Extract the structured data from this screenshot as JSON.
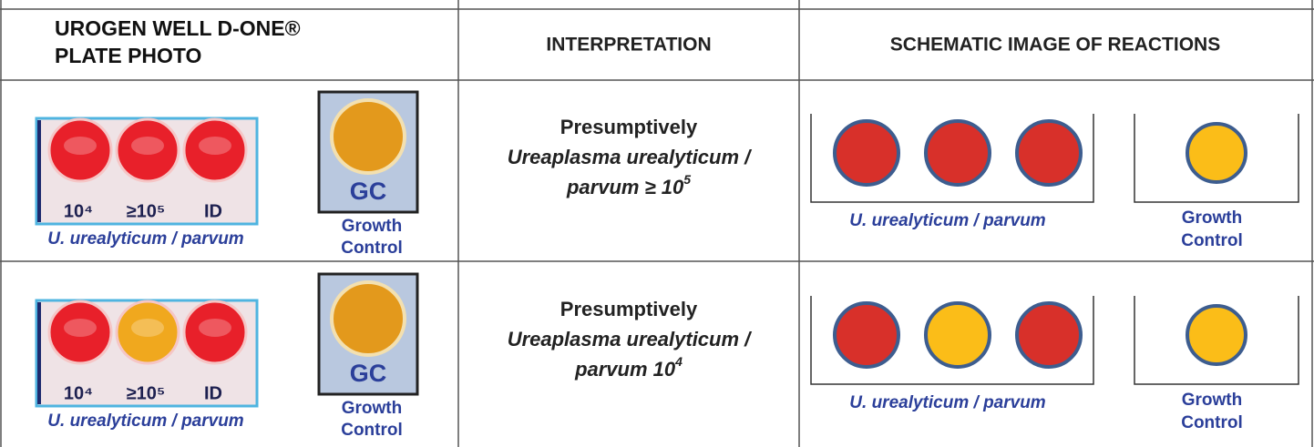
{
  "header": {
    "plate_photo_lines": [
      "UROGEN WELL D-ONE®",
      "PLATE PHOTO"
    ],
    "interpretation": "INTERPRETATION",
    "schematic": "SCHEMATIC IMAGE OF REACTIONS"
  },
  "rows": [
    {
      "photo": {
        "well_labels": [
          "10⁴",
          "≥10⁵",
          "ID"
        ],
        "well_colors": [
          "#e8202a",
          "#e8202a",
          "#e8202a"
        ],
        "control_label": "GC",
        "control_color": "#e3991c",
        "caption": "U. urealyticum / parvum",
        "control_caption": [
          "Growth",
          "Control"
        ]
      },
      "interpretation": {
        "lines": [
          "Presumptively",
          "Ureaplasma urealyticum /"
        ],
        "last_line": "parvum ≥ 10",
        "exponent": "5"
      },
      "schematic": {
        "well_colors": [
          "#d8302a",
          "#d8302a",
          "#d8302a"
        ],
        "control_color": "#fbbd18",
        "caption": "U. urealyticum / parvum",
        "control_caption": [
          "Growth",
          "Control"
        ]
      }
    },
    {
      "photo": {
        "well_labels": [
          "10⁴",
          "≥10⁵",
          "ID"
        ],
        "well_colors": [
          "#e8202a",
          "#f0a81e",
          "#e8202a"
        ],
        "control_label": "GC",
        "control_color": "#e3991c",
        "caption": "U. urealyticum / parvum",
        "control_caption": [
          "Growth",
          "Control"
        ]
      },
      "interpretation": {
        "lines": [
          "Presumptively",
          "Ureaplasma urealyticum /"
        ],
        "last_line": "parvum 10",
        "exponent": "4"
      },
      "schematic": {
        "well_colors": [
          "#d8302a",
          "#fbbd18",
          "#d8302a"
        ],
        "control_color": "#fbbd18",
        "caption": "U. urealyticum / parvum",
        "control_caption": [
          "Growth",
          "Control"
        ]
      }
    }
  ]
}
